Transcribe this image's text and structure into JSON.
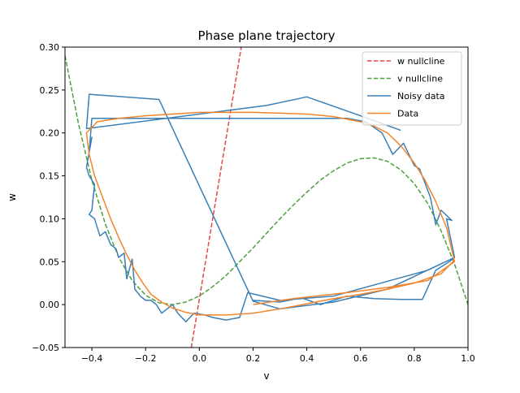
{
  "chart_data": {
    "type": "line",
    "title": "Phase plane trajectory",
    "xlabel": "v",
    "ylabel": "w",
    "xlim": [
      -0.5,
      1.0
    ],
    "ylim": [
      -0.05,
      0.3
    ],
    "grid": false,
    "legend_position": "top-right",
    "x_ticks": [
      "−0.4",
      "−0.2",
      "0.0",
      "0.2",
      "0.4",
      "0.6",
      "0.8",
      "1.0"
    ],
    "y_ticks": [
      "−0.05",
      "0.00",
      "0.05",
      "0.10",
      "0.15",
      "0.20",
      "0.25",
      "0.30"
    ],
    "series": [
      {
        "name": "w nullcline",
        "color": "#e8474a",
        "style": "dashed",
        "x": [
          -0.03,
          0.156
        ],
        "y": [
          -0.05,
          0.3
        ]
      },
      {
        "name": "v nullcline",
        "color": "#4aa33b",
        "style": "dashed",
        "x": [
          -0.5,
          -0.45,
          -0.4,
          -0.35,
          -0.3,
          -0.25,
          -0.2,
          -0.15,
          -0.1,
          -0.05,
          0.0,
          0.05,
          0.1,
          0.15,
          0.2,
          0.25,
          0.3,
          0.35,
          0.4,
          0.45,
          0.5,
          0.55,
          0.6,
          0.65,
          0.7,
          0.75,
          0.8,
          0.85,
          0.9,
          0.95,
          1.0
        ],
        "y": [
          0.29,
          0.211,
          0.145,
          0.094,
          0.055,
          0.028,
          0.011,
          0.002,
          0.0,
          0.003,
          0.01,
          0.021,
          0.034,
          0.05,
          0.066,
          0.083,
          0.1,
          0.116,
          0.131,
          0.145,
          0.156,
          0.165,
          0.17,
          0.171,
          0.167,
          0.157,
          0.141,
          0.118,
          0.086,
          0.047,
          0.0
        ]
      },
      {
        "name": "Noisy data",
        "color": "#3a7fb6",
        "style": "solid",
        "x": [
          0.2,
          0.3,
          0.38,
          0.45,
          0.55,
          0.65,
          0.75,
          0.83,
          0.88,
          0.93,
          0.95,
          0.92,
          0.94,
          0.9,
          0.88,
          0.86,
          0.82,
          0.8,
          0.76,
          0.72,
          0.68,
          0.62,
          0.55,
          0.43,
          0.35,
          0.2,
          0.0,
          -0.2,
          -0.4,
          -0.41,
          -0.4,
          -0.42,
          -0.41,
          -0.39,
          -0.4,
          -0.41,
          -0.39,
          -0.37,
          -0.35,
          -0.33,
          -0.31,
          -0.3,
          -0.28,
          -0.27,
          -0.25,
          -0.24,
          -0.22,
          -0.2,
          -0.18,
          -0.16,
          -0.14,
          -0.12,
          -0.1,
          -0.08,
          -0.05,
          -0.02,
          0.02,
          0.05,
          0.1,
          0.15,
          0.18,
          0.3,
          0.5,
          0.85,
          0.95,
          0.7,
          0.5,
          0.3,
          0.2,
          -0.15,
          -0.41,
          -0.42,
          0.05,
          0.25,
          0.4,
          0.6,
          0.75
        ],
        "y": [
          0.005,
          0.003,
          0.008,
          0.0,
          0.01,
          0.007,
          0.006,
          0.006,
          0.04,
          0.05,
          0.055,
          0.1,
          0.098,
          0.11,
          0.093,
          0.125,
          0.158,
          0.162,
          0.188,
          0.175,
          0.2,
          0.213,
          0.217,
          0.217,
          0.217,
          0.217,
          0.217,
          0.217,
          0.217,
          0.178,
          0.195,
          0.16,
          0.15,
          0.14,
          0.11,
          0.105,
          0.1,
          0.08,
          0.085,
          0.07,
          0.065,
          0.055,
          0.06,
          0.03,
          0.053,
          0.018,
          0.01,
          0.005,
          0.005,
          0.0,
          -0.01,
          -0.005,
          0.0,
          -0.01,
          -0.02,
          -0.01,
          -0.012,
          -0.015,
          -0.018,
          -0.015,
          0.014,
          0.005,
          0.01,
          0.04,
          0.055,
          0.018,
          0.003,
          -0.005,
          0.004,
          0.239,
          0.245,
          0.205,
          0.224,
          0.232,
          0.242,
          0.22,
          0.203
        ]
      },
      {
        "name": "Data",
        "color": "#f5852a",
        "style": "solid",
        "x": [
          0.2,
          0.35,
          0.55,
          0.7,
          0.85,
          0.95,
          0.92,
          0.88,
          0.84,
          0.8,
          0.75,
          0.7,
          0.65,
          0.6,
          0.5,
          0.4,
          0.3,
          0.2,
          0.1,
          0.0,
          -0.1,
          -0.2,
          -0.3,
          -0.38,
          -0.42,
          -0.41,
          -0.39,
          -0.36,
          -0.33,
          -0.3,
          -0.27,
          -0.24,
          -0.21,
          -0.18,
          -0.14,
          -0.1,
          -0.05,
          0.0,
          0.1,
          0.2,
          0.3,
          0.4,
          0.5,
          0.6,
          0.7,
          0.8,
          0.9,
          0.95
        ],
        "y": [
          0.0,
          0.007,
          0.014,
          0.02,
          0.028,
          0.05,
          0.09,
          0.12,
          0.145,
          0.165,
          0.185,
          0.2,
          0.208,
          0.213,
          0.219,
          0.222,
          0.223,
          0.224,
          0.224,
          0.224,
          0.222,
          0.22,
          0.217,
          0.213,
          0.2,
          0.175,
          0.15,
          0.125,
          0.1,
          0.078,
          0.058,
          0.04,
          0.025,
          0.012,
          0.003,
          -0.004,
          -0.009,
          -0.012,
          -0.012,
          -0.01,
          -0.005,
          0.001,
          0.007,
          0.012,
          0.018,
          0.025,
          0.036,
          0.052
        ]
      }
    ]
  }
}
